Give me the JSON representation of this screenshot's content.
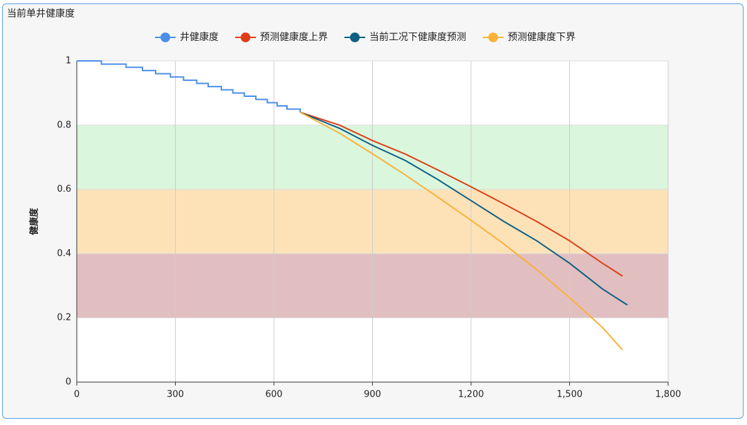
{
  "chart_data": {
    "type": "line",
    "title": "当前单井健康度",
    "y_label": "健康度",
    "xlim": [
      0,
      1800
    ],
    "xticks": [
      0,
      300,
      600,
      900,
      {
        "value": 1200,
        "label": "1,200"
      },
      {
        "value": 1500,
        "label": "1,500"
      },
      {
        "value": 1800,
        "label": "1,800"
      }
    ],
    "ylim": [
      0,
      1
    ],
    "yticks": [
      0,
      0.2,
      0.4,
      0.6,
      0.8,
      1
    ],
    "grid": true,
    "legend": "top",
    "bands": [
      {
        "from": 0.6,
        "to": 0.8,
        "color": "#daf6dc"
      },
      {
        "from": 0.4,
        "to": 0.6,
        "color": "#fde2b8"
      },
      {
        "from": 0.2,
        "to": 0.4,
        "color": "#e1bfc0"
      }
    ],
    "series": [
      {
        "name": "井健康度",
        "color": "#4a8fea",
        "step": true,
        "x": [
          0,
          75,
          150,
          200,
          240,
          285,
          325,
          365,
          400,
          440,
          475,
          510,
          545,
          580,
          610,
          640,
          680
        ],
        "values": [
          1,
          0.99,
          0.98,
          0.97,
          0.96,
          0.95,
          0.94,
          0.93,
          0.92,
          0.91,
          0.9,
          0.89,
          0.88,
          0.87,
          0.86,
          0.85,
          0.84
        ]
      },
      {
        "name": "预测健康度上界",
        "color": "#dc3f17",
        "step": false,
        "x": [
          680,
          800,
          900,
          1000,
          1100,
          1200,
          1300,
          1400,
          1500,
          1600,
          1661
        ],
        "values": [
          0.84,
          0.8,
          0.752,
          0.71,
          0.66,
          0.608,
          0.555,
          0.5,
          0.44,
          0.37,
          0.33
        ]
      },
      {
        "name": "当前工况下健康度预测",
        "color": "#0d5f85",
        "step": false,
        "x": [
          680,
          800,
          900,
          1000,
          1100,
          1200,
          1300,
          1400,
          1500,
          1600,
          1676
        ],
        "values": [
          0.84,
          0.79,
          0.737,
          0.69,
          0.63,
          0.565,
          0.5,
          0.44,
          0.37,
          0.29,
          0.24
        ]
      },
      {
        "name": "预测健康度下界",
        "color": "#f8b23a",
        "step": false,
        "x": [
          680,
          800,
          900,
          1000,
          1100,
          1200,
          1300,
          1400,
          1500,
          1600,
          1661
        ],
        "values": [
          0.84,
          0.775,
          0.711,
          0.645,
          0.575,
          0.504,
          0.43,
          0.35,
          0.263,
          0.17,
          0.1
        ]
      }
    ]
  }
}
